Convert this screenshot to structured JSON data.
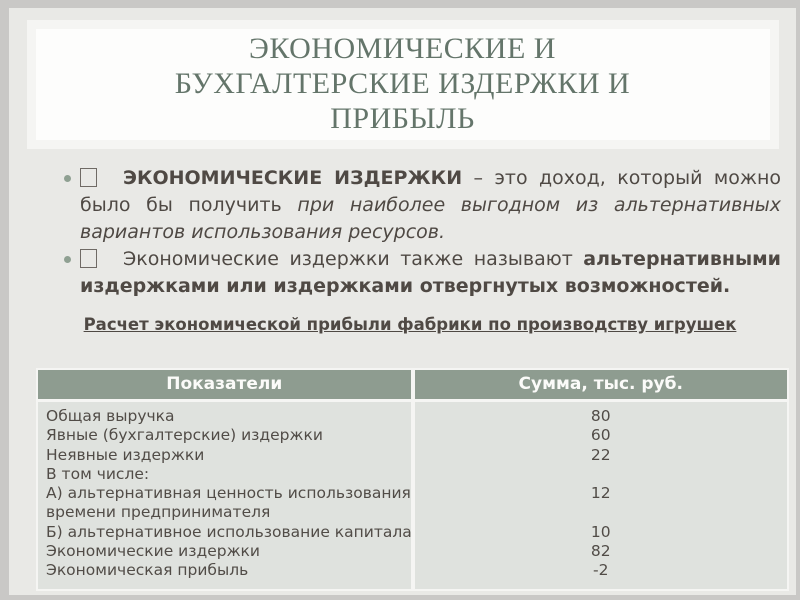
{
  "colors": {
    "outer_background": "#c9c8c6",
    "slide_background": "#e9e9e6",
    "title_text": "#64756a",
    "body_text": "#4f4944",
    "bullet_dot": "#8fa092",
    "table_header_background": "#8e9c90",
    "table_header_text": "#fbfbf9",
    "table_body_background": "#dfe2de"
  },
  "title": {
    "lines": [
      "ЭКОНОМИЧЕСКИЕ И",
      "БУХГАЛТЕРСКИЕ ИЗДЕРЖКИ И",
      "ПРИБЫЛЬ"
    ]
  },
  "bullets": [
    {
      "marker_icon": "empty-square",
      "bold_lead": "ЭКОНОМИЧЕСКИЕ ИЗДЕРЖКИ",
      "normal": " – это доход, который можно было бы получить ",
      "italic": "при наиболее выгодном из альтернативных вариантов использования ресурсов."
    },
    {
      "marker_icon": "empty-square",
      "normal": "Экономические издержки также называют ",
      "bold_tail": "альтернативными издержками или издержками отвергнутых возможностей."
    }
  ],
  "table_caption": "Расчет экономической прибыли фабрики по производству игрушек",
  "table": {
    "headers": [
      "Показатели",
      "Сумма, тыс. руб."
    ],
    "rows": [
      {
        "label": "Общая выручка",
        "value": "80"
      },
      {
        "label": "Явные (бухгалтерские) издержки",
        "value": "60"
      },
      {
        "label": "Неявные издержки",
        "value": "22"
      },
      {
        "label": "В том числе:",
        "value": ""
      },
      {
        "label": "А) альтернативная ценность использования",
        "value": "12"
      },
      {
        "label": "времени предпринимателя",
        "value": ""
      },
      {
        "label": "Б) альтернативное использование капитала",
        "value": "10"
      },
      {
        "label": "Экономические издержки",
        "value": "82"
      },
      {
        "label": "Экономическая прибыль",
        "value": "-2"
      }
    ]
  }
}
